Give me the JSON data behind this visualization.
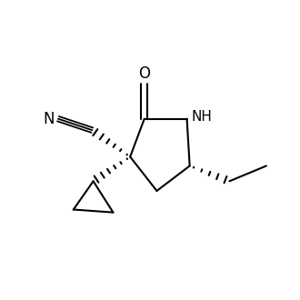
{
  "background_color": "#ffffff",
  "line_color": "#000000",
  "line_width": 1.5,
  "font_size": 11,
  "figsize": [
    3.3,
    3.3
  ],
  "dpi": 100,
  "xlim": [
    -2.2,
    3.0
  ],
  "ylim": [
    -1.8,
    1.8
  ]
}
